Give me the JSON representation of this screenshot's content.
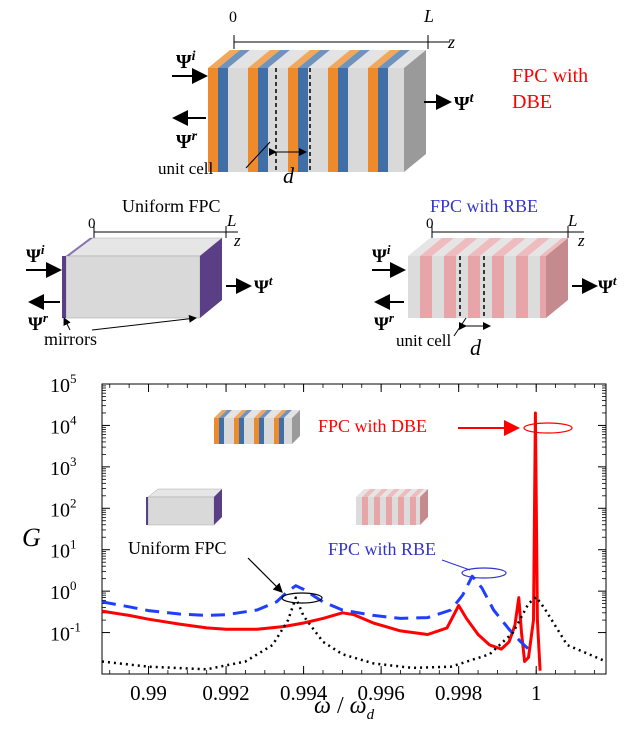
{
  "top_diagram": {
    "axis_start": "0",
    "axis_end": "L",
    "axis_var": "z",
    "psi": "Ψ",
    "sup_incident": "i",
    "sup_reflected": "r",
    "sup_transmitted": "t",
    "label_line1": "FPC with",
    "label_line2": "DBE",
    "unit_cell": "unit cell",
    "period": "d",
    "colors": {
      "orange": "#ee8a2a",
      "blue": "#3f6fa6",
      "gray": "#d9d9d9",
      "label": "#ff0000"
    }
  },
  "uniform_diagram": {
    "title": "Uniform FPC",
    "axis_start": "0",
    "axis_end": "L",
    "axis_var": "z",
    "mirrors": "mirrors",
    "colors": {
      "body": "#dcdcdc",
      "mirror": "#5a3f86"
    }
  },
  "rbe_diagram": {
    "title": "FPC with RBE",
    "axis_start": "0",
    "axis_end": "L",
    "axis_var": "z",
    "unit_cell": "unit cell",
    "period": "d",
    "colors": {
      "pink": "#e8a5a8",
      "gray": "#dcdcdc",
      "title": "#3333cc"
    }
  },
  "chart_data": {
    "type": "line",
    "xlabel_main": "ω",
    "xlabel_sub": "d",
    "ylabel": "G",
    "y_scale": "log",
    "xlim": [
      0.9888,
      1.0018
    ],
    "ylim": [
      0.01,
      100000
    ],
    "x_ticks": [
      "0.99",
      "0.992",
      "0.994",
      "0.996",
      "0.998",
      "1"
    ],
    "y_ticks_base": "10",
    "y_tick_exponents": [
      "-1",
      "0",
      "1",
      "2",
      "3",
      "4",
      "5"
    ],
    "series": [
      {
        "name": "FPC with DBE",
        "color": "#ff0000",
        "style": "solid",
        "points": [
          [
            0.9888,
            0.33
          ],
          [
            0.9895,
            0.26
          ],
          [
            0.99,
            0.21
          ],
          [
            0.9908,
            0.16
          ],
          [
            0.9915,
            0.13
          ],
          [
            0.992,
            0.12
          ],
          [
            0.9928,
            0.12
          ],
          [
            0.9935,
            0.14
          ],
          [
            0.994,
            0.17
          ],
          [
            0.9945,
            0.22
          ],
          [
            0.995,
            0.3
          ],
          [
            0.9953,
            0.27
          ],
          [
            0.9958,
            0.17
          ],
          [
            0.9965,
            0.11
          ],
          [
            0.9972,
            0.09
          ],
          [
            0.9977,
            0.13
          ],
          [
            0.998,
            0.45
          ],
          [
            0.9982,
            0.22
          ],
          [
            0.9985,
            0.09
          ],
          [
            0.9988,
            0.05
          ],
          [
            0.9991,
            0.04
          ],
          [
            0.9993,
            0.06
          ],
          [
            0.99945,
            0.15
          ],
          [
            0.99955,
            0.7
          ],
          [
            0.99962,
            0.1
          ],
          [
            0.9997,
            0.02
          ],
          [
            0.9998,
            0.025
          ],
          [
            0.99993,
            0.2
          ],
          [
            0.99998,
            20000
          ],
          [
            1.00003,
            0.2
          ],
          [
            1.0001,
            0.012
          ]
        ]
      },
      {
        "name": "FPC with RBE",
        "color": "#1f3fff",
        "style": "dashed",
        "points": [
          [
            0.9888,
            0.55
          ],
          [
            0.9895,
            0.42
          ],
          [
            0.99,
            0.34
          ],
          [
            0.9908,
            0.28
          ],
          [
            0.9915,
            0.26
          ],
          [
            0.992,
            0.27
          ],
          [
            0.9928,
            0.35
          ],
          [
            0.9933,
            0.55
          ],
          [
            0.9936,
            1.0
          ],
          [
            0.9938,
            1.35
          ],
          [
            0.994,
            1.1
          ],
          [
            0.9945,
            0.55
          ],
          [
            0.995,
            0.35
          ],
          [
            0.9958,
            0.26
          ],
          [
            0.9965,
            0.22
          ],
          [
            0.9972,
            0.23
          ],
          [
            0.9978,
            0.35
          ],
          [
            0.9981,
            0.8
          ],
          [
            0.99835,
            2.3
          ],
          [
            0.9986,
            1.2
          ],
          [
            0.9989,
            0.35
          ],
          [
            0.9993,
            0.12
          ],
          [
            0.9996,
            0.06
          ],
          [
            0.9998,
            0.04
          ]
        ]
      },
      {
        "name": "Uniform FPC",
        "color": "#000000",
        "style": "dotted",
        "points": [
          [
            0.9888,
            0.02
          ],
          [
            0.99,
            0.015
          ],
          [
            0.9915,
            0.013
          ],
          [
            0.9925,
            0.02
          ],
          [
            0.9932,
            0.05
          ],
          [
            0.9936,
            0.2
          ],
          [
            0.9938,
            0.7
          ],
          [
            0.994,
            0.25
          ],
          [
            0.9945,
            0.06
          ],
          [
            0.995,
            0.03
          ],
          [
            0.9958,
            0.018
          ],
          [
            0.9968,
            0.014
          ],
          [
            0.9978,
            0.015
          ],
          [
            0.9988,
            0.03
          ],
          [
            0.9994,
            0.1
          ],
          [
            0.9998,
            0.5
          ],
          [
            1.0,
            0.72
          ],
          [
            1.0002,
            0.4
          ],
          [
            1.0008,
            0.05
          ],
          [
            1.0018,
            0.02
          ]
        ]
      }
    ],
    "annotations": {
      "dbe": "FPC with DBE",
      "rbe": "FPC with RBE",
      "uniform": "Uniform FPC"
    }
  }
}
